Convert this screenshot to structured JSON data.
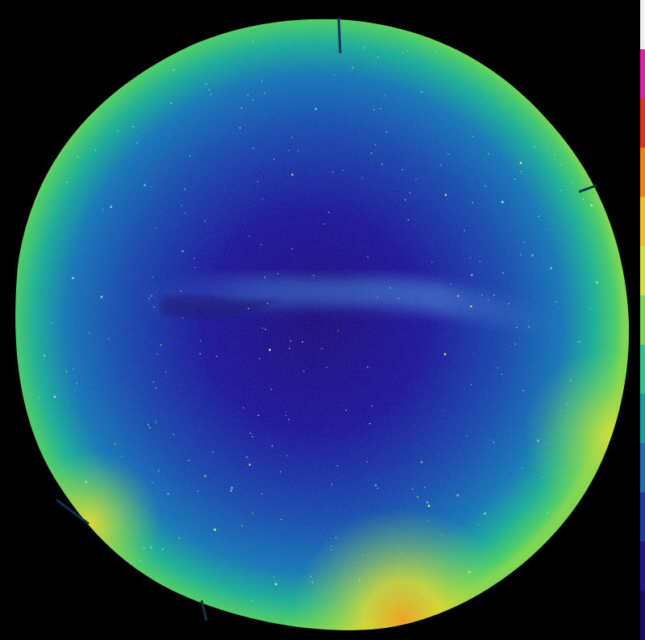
{
  "image": {
    "subject": "all-sky-camera",
    "colormap": [
      "#1a0a6e",
      "#21168f",
      "#1f3aa8",
      "#1c6db3",
      "#14a0a0",
      "#2bc48a",
      "#7fd652",
      "#d4e436",
      "#f0c020",
      "#f08010",
      "#e03020",
      "#e020a0",
      "#f0f0f0"
    ],
    "colors": {
      "background": "#000000",
      "sky_center": "#22178f",
      "sky_mid": "#1c55b0",
      "sky_edge": "#36c678",
      "horizon_glow": "#e8d230",
      "milky_way": "#3a6cc8"
    }
  }
}
